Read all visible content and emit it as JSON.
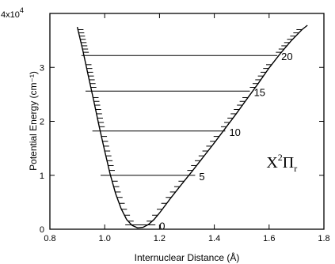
{
  "chart_data": {
    "type": "line",
    "title": "",
    "xlabel": "Internuclear Distance (Å)",
    "ylabel": "Potential Energy (cm⁻¹)",
    "y_multiplier_label": "4x10",
    "y_multiplier_exponent": "4",
    "xlim": [
      0.8,
      1.8
    ],
    "ylim": [
      0,
      40000
    ],
    "x_ticks": [
      0.8,
      1.0,
      1.2,
      1.4,
      1.6,
      1.8
    ],
    "x_tick_labels": [
      "0.8",
      "1.0",
      "1.2",
      "1.4",
      "1.6",
      "1.8"
    ],
    "y_ticks": [
      0,
      10000,
      20000,
      30000
    ],
    "y_tick_labels": [
      "0",
      "1",
      "2",
      "3"
    ],
    "grid": false,
    "state_label": {
      "main": "X",
      "sup": "2",
      "pi": "Π",
      "sub": "r",
      "x": 1.59,
      "y": 11400
    },
    "curve": [
      [
        0.9,
        37500
      ],
      [
        0.92,
        33200
      ],
      [
        0.94,
        28500
      ],
      [
        0.96,
        23800
      ],
      [
        0.98,
        19000
      ],
      [
        1.0,
        14500
      ],
      [
        1.02,
        10200
      ],
      [
        1.04,
        6600
      ],
      [
        1.06,
        3800
      ],
      [
        1.08,
        1800
      ],
      [
        1.1,
        700
      ],
      [
        1.12,
        250
      ],
      [
        1.14,
        350
      ],
      [
        1.16,
        900
      ],
      [
        1.18,
        1800
      ],
      [
        1.2,
        3000
      ],
      [
        1.24,
        5700
      ],
      [
        1.28,
        8300
      ],
      [
        1.32,
        10800
      ],
      [
        1.36,
        13400
      ],
      [
        1.4,
        16000
      ],
      [
        1.44,
        18700
      ],
      [
        1.48,
        21400
      ],
      [
        1.52,
        24200
      ],
      [
        1.56,
        27000
      ],
      [
        1.6,
        29900
      ],
      [
        1.64,
        32500
      ],
      [
        1.68,
        34900
      ],
      [
        1.72,
        37000
      ],
      [
        1.74,
        37800
      ]
    ],
    "vibrational_levels": [
      {
        "label": "0",
        "energy": 800,
        "x_left": 1.075,
        "x_right": 1.185
      },
      {
        "label": "5",
        "energy": 10000,
        "x_left": 0.985,
        "x_right": 1.33
      },
      {
        "label": "10",
        "energy": 18200,
        "x_left": 0.955,
        "x_right": 1.44
      },
      {
        "label": "15",
        "energy": 25600,
        "x_left": 0.93,
        "x_right": 1.53
      },
      {
        "label": "20",
        "energy": 32200,
        "x_left": 0.915,
        "x_right": 1.63
      }
    ],
    "minor_levels": [
      1500,
      2600,
      3700,
      4800,
      5900,
      6900,
      7900,
      8900,
      10900,
      11800,
      12700,
      13600,
      14500,
      15400,
      16300,
      17200,
      19000,
      19800,
      20600,
      21400,
      22200,
      23000,
      23700,
      24400,
      26300,
      27000,
      27700,
      28400,
      29100,
      29800,
      30500,
      32800,
      33400,
      34000,
      34600,
      35200,
      35800,
      36400,
      37000
    ]
  }
}
